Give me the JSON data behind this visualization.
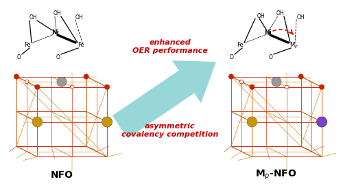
{
  "bg_color": "#ffffff",
  "arrow_color": "#7ecece",
  "enhanced_text": "enhanced\nOER performance",
  "asymmetric_text": "asymmetric\ncovalency competition",
  "nfo_label": "NFO",
  "red_color": "#dd1111",
  "text_red": "#cc0000",
  "bond_color": "#000000",
  "crystal_red": "#cc2200",
  "crystal_orange": "#cc7700",
  "crystal_gold": "#c8960c",
  "crystal_gray": "#999999",
  "crystal_purple": "#7744cc",
  "fig_width": 5.0,
  "fig_height": 2.71
}
